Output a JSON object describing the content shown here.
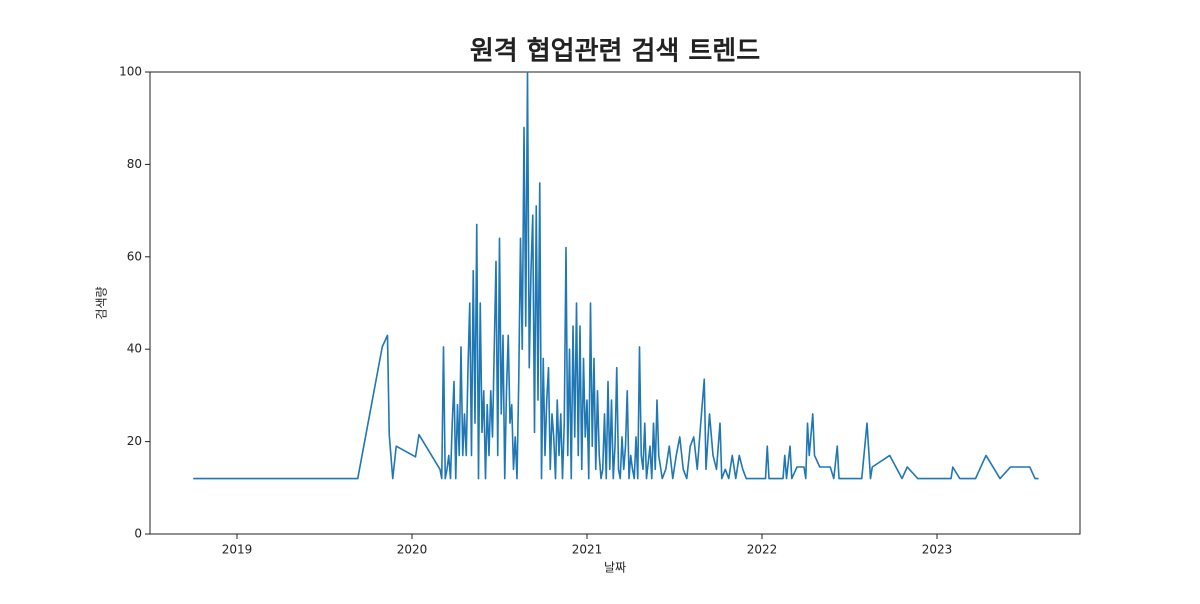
{
  "chart_data": {
    "type": "line",
    "title": "원격 협업관련 검색 트렌드",
    "xlabel": "날짜",
    "ylabel": "검색량",
    "xlim": [
      2018.503,
      2023.817
    ],
    "xticks": [
      2019,
      2020,
      2021,
      2022,
      2023
    ],
    "ylim": [
      0,
      100
    ],
    "yticks": [
      0,
      20,
      40,
      60,
      80,
      100
    ],
    "series": [
      {
        "color": "#1f77b4",
        "x": [
          2018.75,
          2019.69,
          2019.83,
          2019.86,
          2019.87,
          2019.89,
          2019.91,
          2020.02,
          2020.04,
          2020.16,
          2020.17,
          2020.18,
          2020.19,
          2020.2,
          2020.21,
          2020.22,
          2020.23,
          2020.24,
          2020.25,
          2020.26,
          2020.27,
          2020.28,
          2020.29,
          2020.3,
          2020.31,
          2020.32,
          2020.33,
          2020.34,
          2020.35,
          2020.36,
          2020.37,
          2020.38,
          2020.39,
          2020.4,
          2020.41,
          2020.42,
          2020.43,
          2020.44,
          2020.45,
          2020.46,
          2020.47,
          2020.48,
          2020.49,
          2020.5,
          2020.51,
          2020.52,
          2020.53,
          2020.54,
          2020.55,
          2020.56,
          2020.57,
          2020.58,
          2020.59,
          2020.6,
          2020.61,
          2020.62,
          2020.63,
          2020.64,
          2020.65,
          2020.66,
          2020.67,
          2020.68,
          2020.69,
          2020.7,
          2020.71,
          2020.72,
          2020.73,
          2020.74,
          2020.75,
          2020.76,
          2020.77,
          2020.78,
          2020.79,
          2020.8,
          2020.81,
          2020.82,
          2020.83,
          2020.84,
          2020.85,
          2020.86,
          2020.87,
          2020.88,
          2020.89,
          2020.9,
          2020.91,
          2020.92,
          2020.93,
          2020.94,
          2020.95,
          2020.96,
          2020.97,
          2020.98,
          2020.99,
          2021.0,
          2021.01,
          2021.02,
          2021.03,
          2021.04,
          2021.05,
          2021.06,
          2021.07,
          2021.08,
          2021.09,
          2021.1,
          2021.11,
          2021.12,
          2021.13,
          2021.14,
          2021.15,
          2021.16,
          2021.17,
          2021.18,
          2021.19,
          2021.2,
          2021.21,
          2021.22,
          2021.23,
          2021.24,
          2021.25,
          2021.26,
          2021.27,
          2021.28,
          2021.29,
          2021.3,
          2021.31,
          2021.32,
          2021.33,
          2021.34,
          2021.36,
          2021.37,
          2021.38,
          2021.39,
          2021.4,
          2021.41,
          2021.43,
          2021.45,
          2021.47,
          2021.49,
          2021.51,
          2021.53,
          2021.55,
          2021.57,
          2021.59,
          2021.61,
          2021.63,
          2021.65,
          2021.67,
          2021.68,
          2021.7,
          2021.72,
          2021.74,
          2021.76,
          2021.77,
          2021.79,
          2021.81,
          2021.83,
          2021.85,
          2021.87,
          2021.89,
          2021.91,
          2022.02,
          2022.03,
          2022.04,
          2022.12,
          2022.13,
          2022.14,
          2022.16,
          2022.17,
          2022.2,
          2022.24,
          2022.25,
          2022.26,
          2022.27,
          2022.29,
          2022.3,
          2022.33,
          2022.39,
          2022.41,
          2022.43,
          2022.44,
          2022.57,
          2022.6,
          2022.62,
          2022.63,
          2022.73,
          2022.8,
          2022.83,
          2022.89,
          2023.08,
          2023.09,
          2023.13,
          2023.22,
          2023.28,
          2023.36,
          2023.42,
          2023.53,
          2023.56,
          2023.58
        ],
        "values": [
          12,
          12,
          40.5,
          43,
          21.5,
          12,
          19,
          16.7,
          21.5,
          14,
          12,
          40.5,
          12,
          14,
          17,
          12,
          24,
          33,
          12,
          28,
          17,
          40.5,
          17,
          26,
          17,
          36,
          50,
          17,
          57,
          24,
          67,
          12,
          50,
          22,
          31,
          12,
          28,
          17,
          31,
          21,
          40,
          59,
          17,
          64,
          26,
          43,
          12,
          31,
          43,
          24,
          28,
          14,
          21,
          12,
          33,
          64,
          40,
          88,
          45,
          100,
          36,
          57,
          69,
          22,
          71,
          29,
          76,
          12,
          38,
          17,
          29,
          36,
          14,
          26,
          21,
          12,
          29,
          17,
          26,
          12,
          24,
          62,
          17,
          40,
          12,
          45,
          21,
          50,
          17,
          45,
          14,
          38,
          21,
          29,
          12,
          50,
          19,
          38,
          14,
          31,
          17,
          12,
          14,
          26,
          12,
          33,
          14,
          29,
          12,
          19,
          36,
          14,
          12,
          21,
          14,
          19,
          31,
          12,
          17,
          14,
          12,
          21,
          12,
          40.5,
          17,
          14,
          24,
          12,
          19,
          12,
          24,
          14,
          29,
          17,
          12,
          14,
          19,
          12,
          17,
          21,
          14,
          12,
          19,
          21,
          14,
          24,
          33.5,
          14,
          26,
          17,
          14,
          24,
          12,
          14,
          12,
          17,
          12,
          17,
          14,
          12,
          12,
          19,
          12,
          12,
          17,
          12,
          19,
          12,
          14.5,
          14.5,
          12,
          24,
          17,
          26,
          17,
          14.5,
          14.5,
          12,
          19,
          12,
          12,
          24,
          12,
          14.5,
          17,
          12,
          14.5,
          12,
          12,
          14.5,
          12,
          12,
          17,
          12,
          14.5,
          14.5,
          12,
          12
        ]
      }
    ]
  }
}
